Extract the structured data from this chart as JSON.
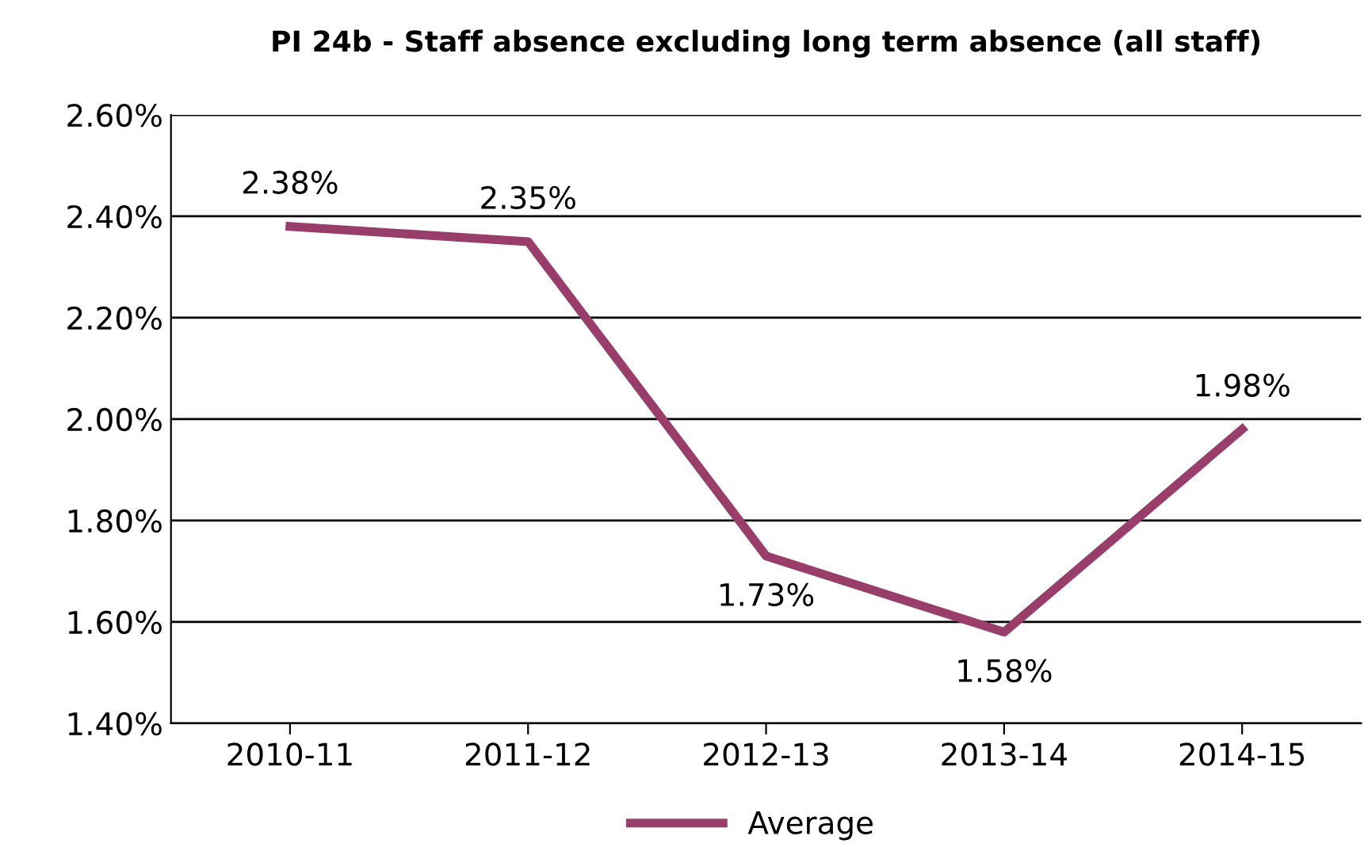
{
  "chart_data": {
    "type": "line",
    "title": "PI 24b - Staff absence excluding long term absence (all staff)",
    "categories": [
      "2010-11",
      "2011-12",
      "2012-13",
      "2013-14",
      "2014-15"
    ],
    "series": [
      {
        "name": "Average",
        "color": "#993d6b",
        "values": [
          2.38,
          2.35,
          1.73,
          1.58,
          1.98
        ],
        "value_labels": [
          "2.38%",
          "2.35%",
          "1.73%",
          "1.58%",
          "1.98%"
        ]
      }
    ],
    "ylim": [
      1.4,
      2.6
    ],
    "yticks": [
      {
        "value": 1.4,
        "label": "1.40%"
      },
      {
        "value": 1.6,
        "label": "1.60%"
      },
      {
        "value": 1.8,
        "label": "1.80%"
      },
      {
        "value": 2.0,
        "label": "2.00%"
      },
      {
        "value": 2.2,
        "label": "2.20%"
      },
      {
        "value": 2.4,
        "label": "2.40%"
      },
      {
        "value": 2.6,
        "label": "2.60%"
      }
    ],
    "grid": "y",
    "legend": "bottom",
    "marker": "none",
    "line_style": "solid"
  }
}
